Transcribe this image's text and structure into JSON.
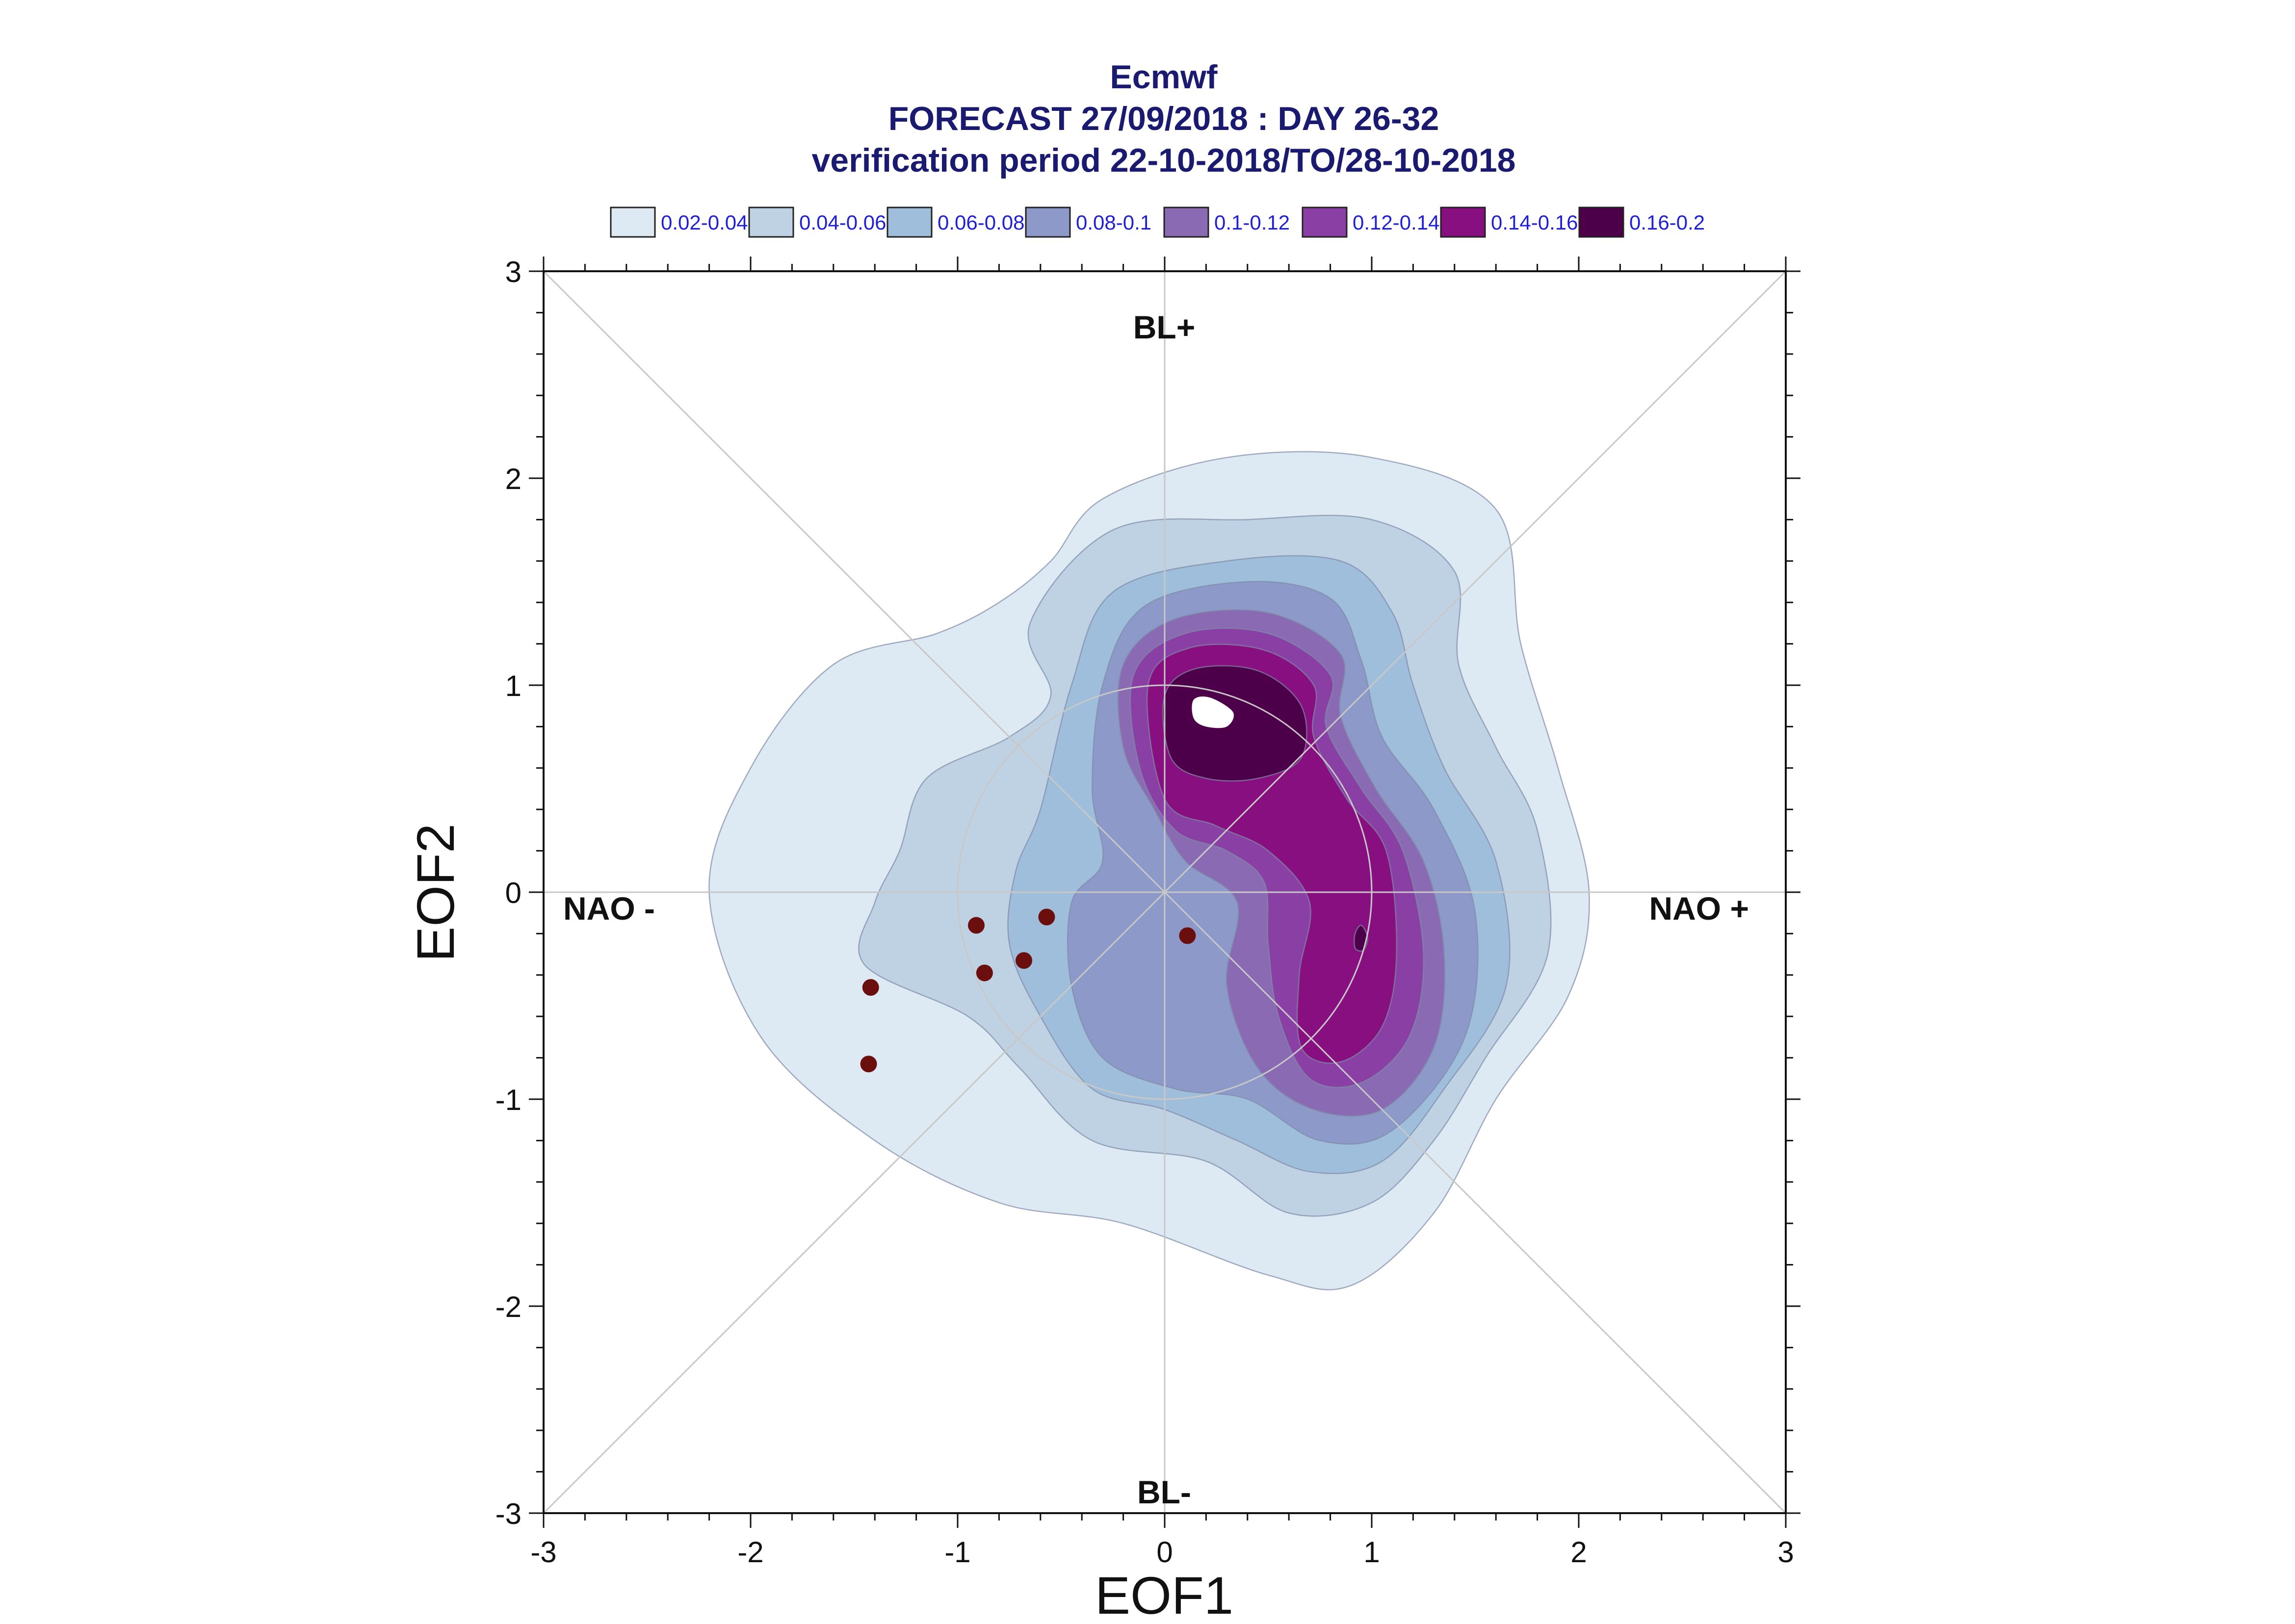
{
  "chart_data": {
    "type": "contour",
    "title": [
      "Ecmwf",
      "FORECAST 27/09/2018 : DAY 26-32",
      "verification period 22-10-2018/TO/28-10-2018"
    ],
    "xlabel": "EOF1",
    "ylabel": "EOF2",
    "xlim": [
      -3,
      3
    ],
    "ylim": [
      -3,
      3
    ],
    "xticks": [
      "-3",
      "-2",
      "-1",
      "0",
      "1",
      "2",
      "3"
    ],
    "yticks": [
      "-3",
      "-2",
      "-1",
      "0",
      "1",
      "2",
      "3"
    ],
    "grid": "diagonal reference lines, axis cross and unit circle",
    "regime_labels": {
      "top": "BL+",
      "bottom": "BL-",
      "left": "NAO -",
      "right": "NAO +"
    },
    "legend": {
      "placement": "top",
      "entries": [
        {
          "label": "0.02-0.04",
          "color": "#deeaf3"
        },
        {
          "label": "0.04-0.06",
          "color": "#bed2e4"
        },
        {
          "label": "0.06-0.08",
          "color": "#9fbedb"
        },
        {
          "label": "0.08-0.1",
          "color": "#8c99c9"
        },
        {
          "label": "0.1-0.12",
          "color": "#8a6bb3"
        },
        {
          "label": "0.12-0.14",
          "color": "#8a3fa4"
        },
        {
          "label": "0.14-0.16",
          "color": "#880f80"
        },
        {
          "label": "0.16-0.2",
          "color": "#4d0049"
        }
      ]
    },
    "points": [
      {
        "x": -0.57,
        "y": -0.12
      },
      {
        "x": -0.91,
        "y": -0.16
      },
      {
        "x": -0.87,
        "y": -0.39
      },
      {
        "x": -0.68,
        "y": -0.33
      },
      {
        "x": -1.42,
        "y": -0.46
      },
      {
        "x": -1.43,
        "y": -0.83
      },
      {
        "x": 0.11,
        "y": -0.21
      }
    ],
    "point_color": "#6a0e0e",
    "peak_color": "#ffffff"
  }
}
